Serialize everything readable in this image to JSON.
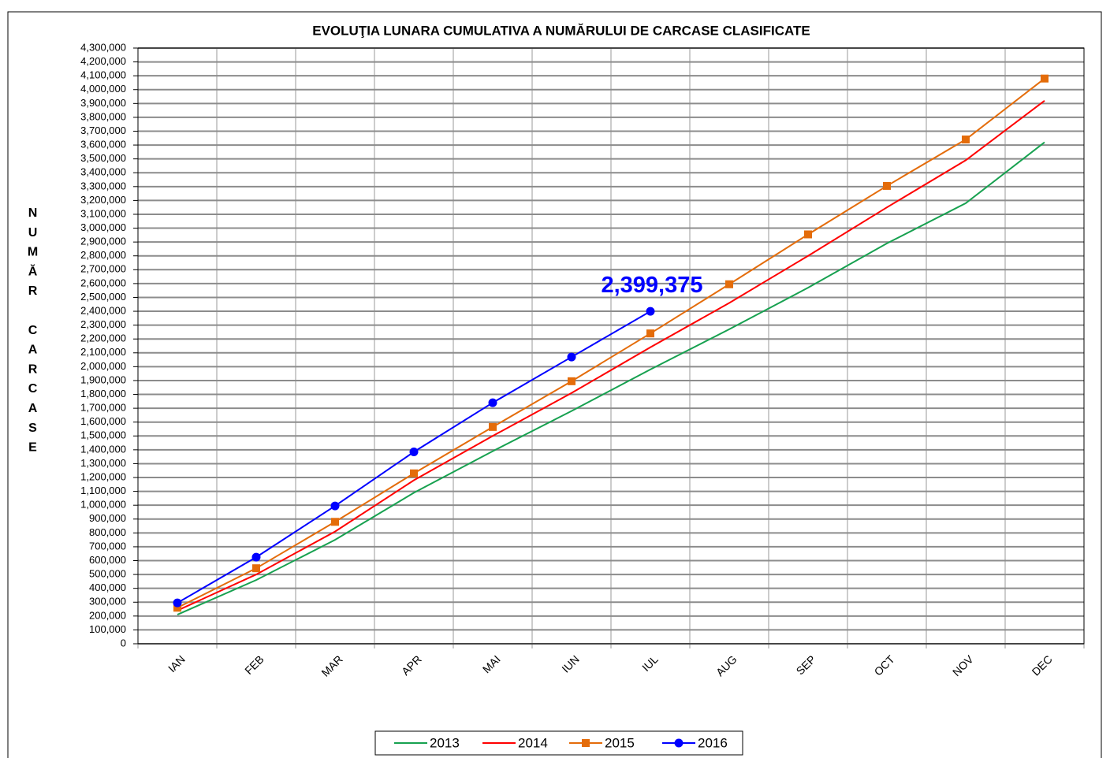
{
  "chart_data": {
    "type": "line",
    "title": "EVOLUŢIA LUNARA  CUMULATIVA A NUMĂRULUI DE CARCASE CLASIFICATE",
    "y_label": "NUMĂR CARCASE",
    "categories": [
      "IAN",
      "FEB",
      "MAR",
      "APR",
      "MAI",
      "IUN",
      "IUL",
      "AUG",
      "SEP",
      "OCT",
      "NOV",
      "DEC"
    ],
    "series": [
      {
        "name": "2013",
        "color": "#17a150",
        "marker": null,
        "values": [
          210000,
          460000,
          750000,
          1090000,
          1390000,
          1680000,
          1980000,
          2270000,
          2570000,
          2890000,
          3180000,
          3620000
        ]
      },
      {
        "name": "2014",
        "color": "#ff0000",
        "marker": null,
        "values": [
          240000,
          500000,
          810000,
          1180000,
          1500000,
          1810000,
          2140000,
          2460000,
          2800000,
          3150000,
          3490000,
          3920000
        ]
      },
      {
        "name": "2015",
        "color": "#e46c0a",
        "marker": "square",
        "values": [
          260000,
          545000,
          880000,
          1230000,
          1565000,
          1895000,
          2240000,
          2595000,
          2955000,
          3305000,
          3640000,
          4080000
        ]
      },
      {
        "name": "2016",
        "color": "#0000ff",
        "marker": "circle",
        "values": [
          295000,
          625000,
          995000,
          1385000,
          1740000,
          2070000,
          2399375,
          null,
          null,
          null,
          null,
          null
        ],
        "value_labels": [
          null,
          null,
          null,
          null,
          null,
          null,
          "2,399,375",
          null,
          null,
          null,
          null,
          null
        ]
      }
    ],
    "ylim": [
      0,
      4300000
    ],
    "yticks": [
      0,
      {
        "value": 100000,
        "label": "100,000"
      },
      {
        "value": 200000,
        "label": "200,000"
      },
      {
        "value": 300000,
        "label": "300,000"
      },
      {
        "value": 400000,
        "label": "400,000"
      },
      {
        "value": 500000,
        "label": "500,000"
      },
      {
        "value": 600000,
        "label": "600,000"
      },
      {
        "value": 700000,
        "label": "700,000"
      },
      {
        "value": 800000,
        "label": "800,000"
      },
      {
        "value": 900000,
        "label": "900,000"
      },
      {
        "value": 1000000,
        "label": "1,000,000"
      },
      {
        "value": 1100000,
        "label": "1,100,000"
      },
      {
        "value": 1200000,
        "label": "1,200,000"
      },
      {
        "value": 1300000,
        "label": "1,300,000"
      },
      {
        "value": 1400000,
        "label": "1,400,000"
      },
      {
        "value": 1500000,
        "label": "1,500,000"
      },
      {
        "value": 1600000,
        "label": "1,600,000"
      },
      {
        "value": 1700000,
        "label": "1,700,000"
      },
      {
        "value": 1800000,
        "label": "1,800,000"
      },
      {
        "value": 1900000,
        "label": "1,900,000"
      },
      {
        "value": 2000000,
        "label": "2,000,000"
      },
      {
        "value": 2100000,
        "label": "2,100,000"
      },
      {
        "value": 2200000,
        "label": "2,200,000"
      },
      {
        "value": 2300000,
        "label": "2,300,000"
      },
      {
        "value": 2400000,
        "label": "2,400,000"
      },
      {
        "value": 2500000,
        "label": "2,500,000"
      },
      {
        "value": 2600000,
        "label": "2,600,000"
      },
      {
        "value": 2700000,
        "label": "2,700,000"
      },
      {
        "value": 2800000,
        "label": "2,800,000"
      },
      {
        "value": 2900000,
        "label": "2,900,000"
      },
      {
        "value": 3000000,
        "label": "3,000,000"
      },
      {
        "value": 3100000,
        "label": "3,100,000"
      },
      {
        "value": 3200000,
        "label": "3,200,000"
      },
      {
        "value": 3300000,
        "label": "3,300,000"
      },
      {
        "value": 3400000,
        "label": "3,400,000"
      },
      {
        "value": 3500000,
        "label": "3,500,000"
      },
      {
        "value": 3600000,
        "label": "3,600,000"
      },
      {
        "value": 3700000,
        "label": "3,700,000"
      },
      {
        "value": 3800000,
        "label": "3,800,000"
      },
      {
        "value": 3900000,
        "label": "3,900,000"
      },
      {
        "value": 4000000,
        "label": "4,000,000"
      },
      {
        "value": 4100000,
        "label": "4,100,000"
      },
      {
        "value": 4200000,
        "label": "4,200,000"
      },
      {
        "value": 4300000,
        "label": "4,300,000"
      }
    ],
    "grid": true,
    "legend": "bottom"
  }
}
